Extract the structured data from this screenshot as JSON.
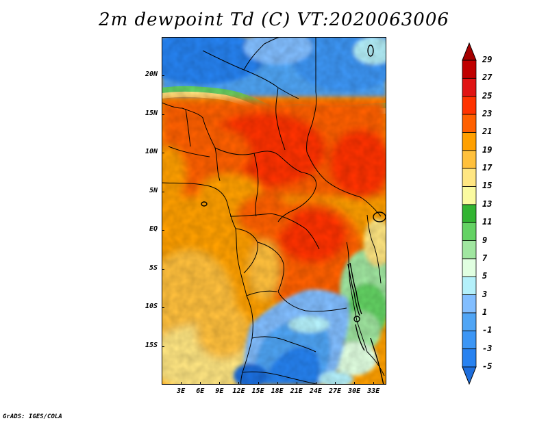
{
  "title": "2m dewpoint Td (C) VT:2020063006",
  "credit": "GrADS: IGES/COLA",
  "map": {
    "lon_range": [
      0,
      35
    ],
    "lat_range": [
      -20,
      25
    ],
    "lat_labels": [
      {
        "value": 20,
        "label": "20N"
      },
      {
        "value": 15,
        "label": "15N"
      },
      {
        "value": 10,
        "label": "10N"
      },
      {
        "value": 5,
        "label": "5N"
      },
      {
        "value": 0,
        "label": "EQ"
      },
      {
        "value": -5,
        "label": "5S"
      },
      {
        "value": -10,
        "label": "10S"
      },
      {
        "value": -15,
        "label": "15S"
      }
    ],
    "lon_labels": [
      {
        "value": 3,
        "label": "3E"
      },
      {
        "value": 6,
        "label": "6E"
      },
      {
        "value": 9,
        "label": "9E"
      },
      {
        "value": 12,
        "label": "12E"
      },
      {
        "value": 15,
        "label": "15E"
      },
      {
        "value": 18,
        "label": "18E"
      },
      {
        "value": 21,
        "label": "21E"
      },
      {
        "value": 24,
        "label": "24E"
      },
      {
        "value": 27,
        "label": "27E"
      },
      {
        "value": 30,
        "label": "30E"
      },
      {
        "value": 33,
        "label": "33E"
      }
    ]
  },
  "colorbar": {
    "levels": [
      "-5",
      "-3",
      "-1",
      "1",
      "3",
      "5",
      "7",
      "9",
      "11",
      "13",
      "15",
      "17",
      "19",
      "21",
      "23",
      "25",
      "27",
      "29"
    ],
    "colors": [
      "#1e6edc",
      "#2882f0",
      "#3c96f5",
      "#50a5f5",
      "#82beff",
      "#b4f0fa",
      "#e1ffe1",
      "#a0e6a0",
      "#64d264",
      "#32b432",
      "#fafaa0",
      "#ffe682",
      "#ffc03c",
      "#ffa000",
      "#ff6000",
      "#ff3300",
      "#e01414",
      "#c00000",
      "#a50000"
    ]
  }
}
